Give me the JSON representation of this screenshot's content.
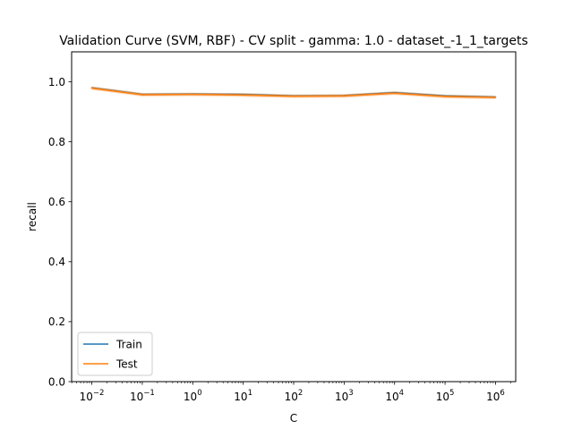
{
  "chart_data": {
    "type": "line",
    "title": "Validation Curve (SVM, RBF) - CV split - gamma: 1.0 - dataset_-1_1_targets",
    "xlabel": "C",
    "ylabel": "recall",
    "xscale": "log",
    "x": [
      0.01,
      0.1,
      1,
      10,
      100,
      1000,
      10000,
      100000,
      1000000
    ],
    "xlim_log10": [
      -2.4,
      6.4
    ],
    "ylim": [
      0.0,
      1.1
    ],
    "yticks": [
      {
        "value": 0.0,
        "label": "0.0"
      },
      {
        "value": 0.2,
        "label": "0.2"
      },
      {
        "value": 0.4,
        "label": "0.4"
      },
      {
        "value": 0.6,
        "label": "0.6"
      },
      {
        "value": 0.8,
        "label": "0.8"
      },
      {
        "value": 1.0,
        "label": "1.0"
      }
    ],
    "xticks": [
      {
        "exp": -2,
        "base": "10",
        "sup": "−2"
      },
      {
        "exp": -1,
        "base": "10",
        "sup": "−1"
      },
      {
        "exp": 0,
        "base": "10",
        "sup": "0"
      },
      {
        "exp": 1,
        "base": "10",
        "sup": "1"
      },
      {
        "exp": 2,
        "base": "10",
        "sup": "2"
      },
      {
        "exp": 3,
        "base": "10",
        "sup": "3"
      },
      {
        "exp": 4,
        "base": "10",
        "sup": "4"
      },
      {
        "exp": 5,
        "base": "10",
        "sup": "5"
      },
      {
        "exp": 6,
        "base": "10",
        "sup": "6"
      }
    ],
    "series": [
      {
        "name": "Train",
        "color": "#1f77b4",
        "values": [
          0.98,
          0.958,
          0.959,
          0.958,
          0.953,
          0.954,
          0.964,
          0.953,
          0.949
        ],
        "band": 0.004
      },
      {
        "name": "Test",
        "color": "#ff7f0e",
        "values": [
          0.979,
          0.957,
          0.958,
          0.956,
          0.952,
          0.953,
          0.962,
          0.951,
          0.948
        ],
        "band": 0.006
      }
    ],
    "legend": "lower-left",
    "grid": false
  }
}
